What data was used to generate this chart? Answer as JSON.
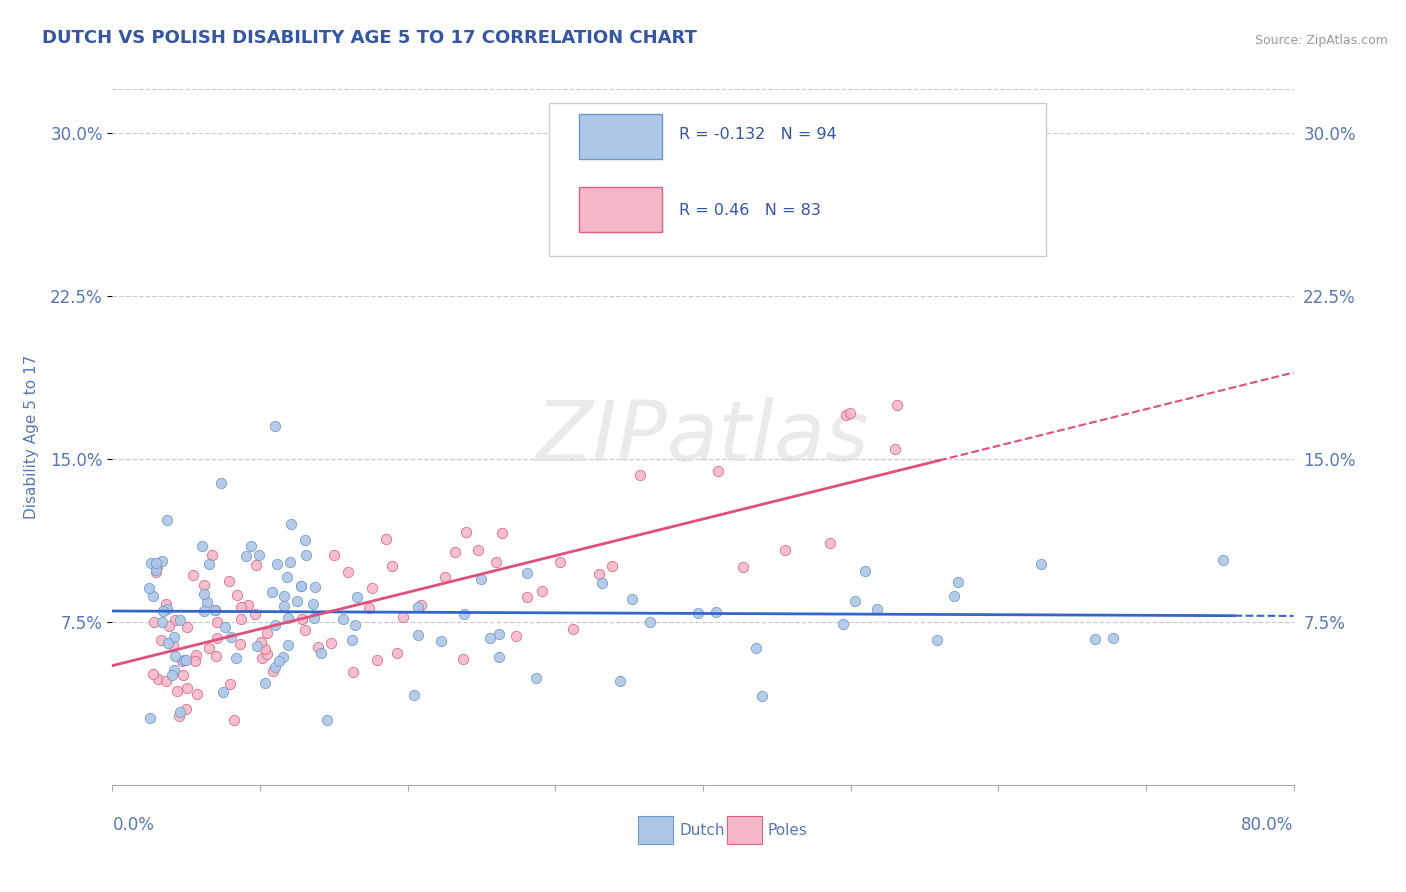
{
  "title": "DUTCH VS POLISH DISABILITY AGE 5 TO 17 CORRELATION CHART",
  "source": "Source: ZipAtlas.com",
  "ylabel": "Disability Age 5 to 17",
  "xmin": 0.0,
  "xmax": 0.8,
  "ymin": 0.0,
  "ymax": 0.32,
  "yticks": [
    0.075,
    0.15,
    0.225,
    0.3
  ],
  "ytick_labels": [
    "7.5%",
    "15.0%",
    "22.5%",
    "30.0%"
  ],
  "legend_r": [
    -0.132,
    0.46
  ],
  "legend_n": [
    94,
    83
  ],
  "dutch_fill": "#aec6e8",
  "dutch_edge": "#6699cc",
  "poles_fill": "#f5b8c8",
  "poles_edge": "#e06080",
  "dutch_line_color": "#3366cc",
  "poles_line_color": "#e0507a",
  "title_color": "#3355aa",
  "tick_color": "#5577bb",
  "grid_color": "#cccccc",
  "watermark_color": "#dddddd",
  "background_color": "#ffffff"
}
